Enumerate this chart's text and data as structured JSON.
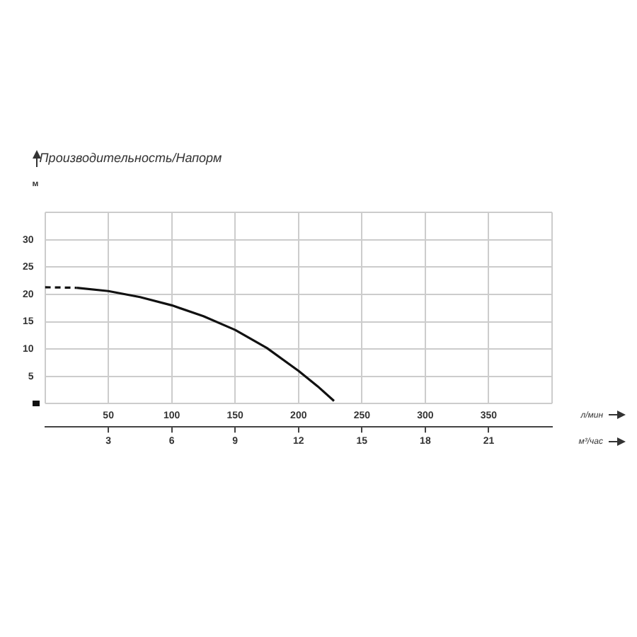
{
  "chart_data": {
    "type": "line",
    "title": "Производительность/Напорм",
    "ylabel": "м",
    "xlabel": "л/мин",
    "x2label": "м³/час",
    "series": [
      {
        "color": "#111111",
        "line_style": "dashed",
        "x": [
          0,
          25
        ],
        "values": [
          21.3,
          21.2
        ]
      },
      {
        "color": "#111111",
        "line_style": "solid",
        "x": [
          25,
          50,
          75,
          100,
          125,
          150,
          175,
          200,
          215,
          228
        ],
        "values": [
          21.2,
          20.6,
          19.5,
          18.0,
          16.0,
          13.5,
          10.2,
          6.0,
          3.2,
          0.5
        ]
      }
    ],
    "xlim": [
      0,
      400
    ],
    "xticks": [
      {
        "value": 0,
        "label": null
      },
      50,
      100,
      150,
      200,
      250,
      300,
      350,
      {
        "value": 400,
        "label": null
      }
    ],
    "x2lim": [
      0,
      24
    ],
    "x2ticks": [
      3,
      6,
      9,
      12,
      15,
      18,
      21
    ],
    "ylim": [
      0,
      35
    ],
    "yticks": [
      {
        "value": 0,
        "label": null
      },
      5,
      10,
      15,
      20,
      25,
      30,
      {
        "value": 35,
        "label": null
      }
    ],
    "grid": true,
    "marker": "none",
    "legend": false
  }
}
